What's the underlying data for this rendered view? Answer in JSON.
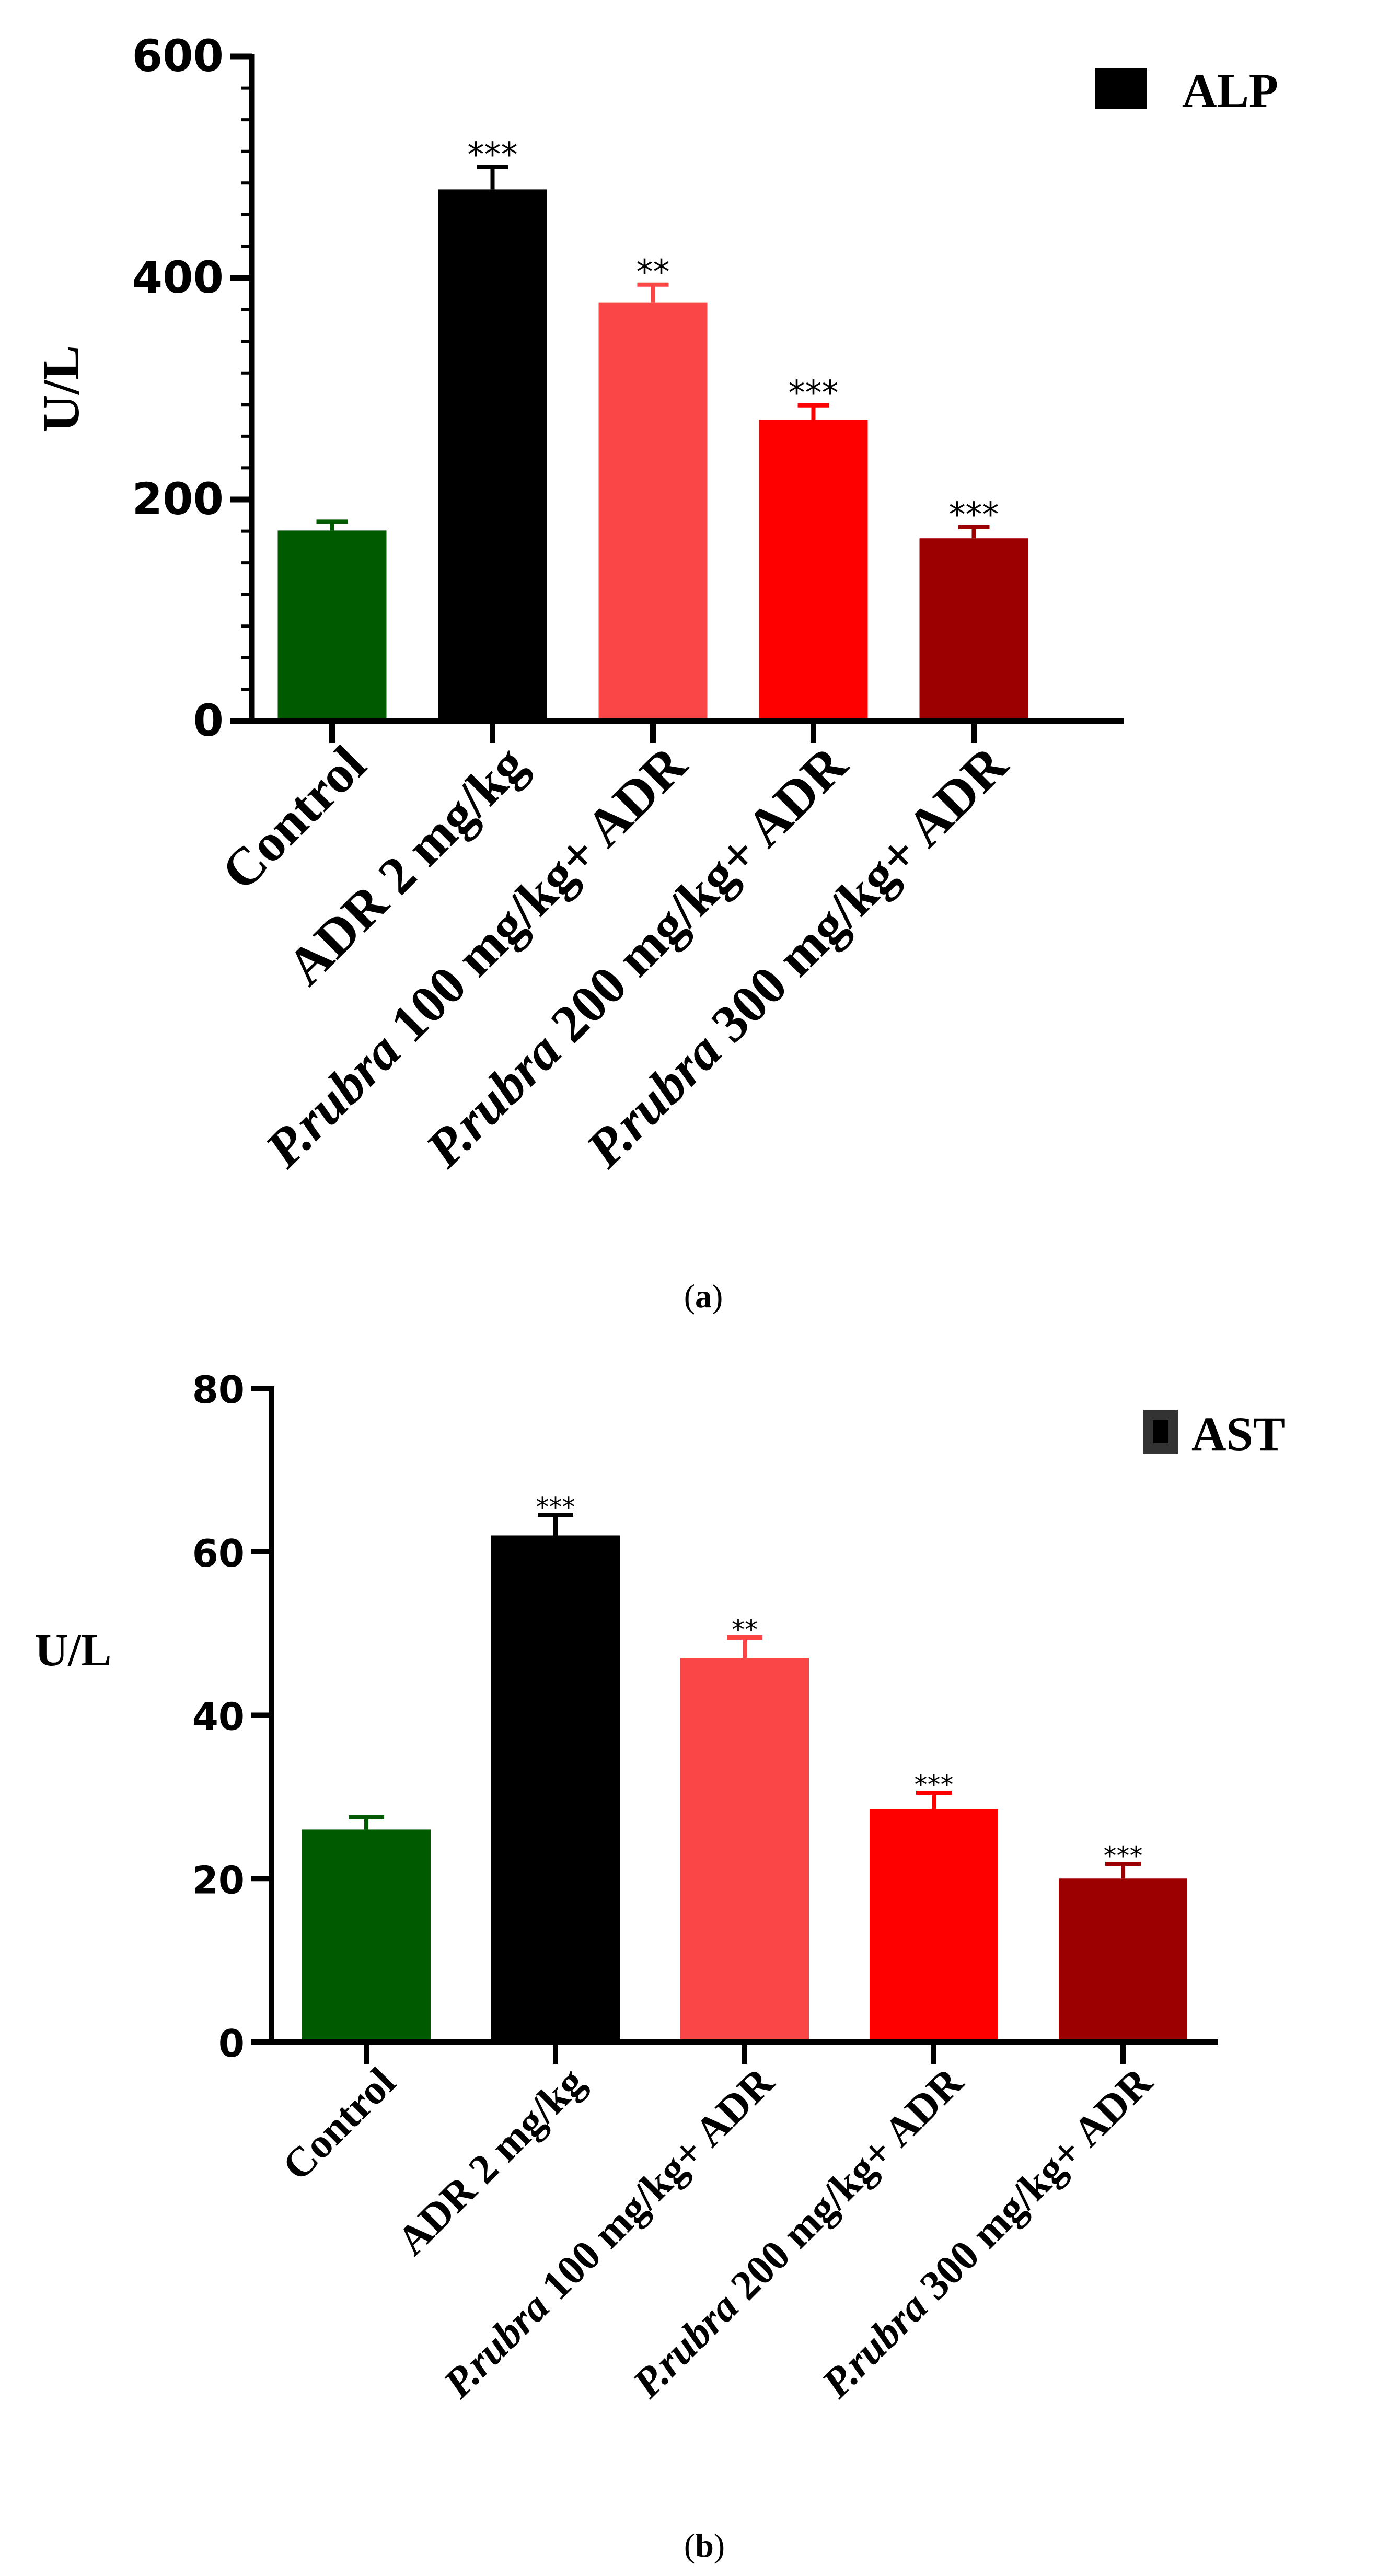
{
  "chart_data": [
    {
      "type": "bar",
      "categories": [
        {
          "italic": "",
          "rest": "Control"
        },
        {
          "italic": "",
          "rest": "ADR 2 mg/kg"
        },
        {
          "italic": "P.rubra",
          "rest": " 100 mg/kg+ ADR"
        },
        {
          "italic": "P.rubra",
          "rest": " 200 mg/kg+ ADR"
        },
        {
          "italic": "P.rubra",
          "rest": " 300 mg/kg+ ADR"
        }
      ],
      "values": [
        172,
        480,
        378,
        272,
        165
      ],
      "errors": [
        8,
        20,
        16,
        13,
        10
      ],
      "significance": [
        "",
        "***",
        "**",
        "***",
        "***"
      ],
      "colors": [
        "#005a00",
        "#000000",
        "#fa4646",
        "#fe0000",
        "#9c0000"
      ],
      "ylabel": "U/L",
      "ylim": [
        0,
        600
      ],
      "yticks": [
        "0",
        "200",
        "400",
        "600"
      ],
      "legend": {
        "label": "ALP",
        "position": "top-right"
      },
      "caption": {
        "open": "(",
        "letter": "a",
        "close": ")"
      }
    },
    {
      "type": "bar",
      "categories": [
        {
          "italic": "",
          "rest": "Control"
        },
        {
          "italic": "",
          "rest": "ADR 2 mg/kg"
        },
        {
          "italic": "P.rubra",
          "rest": " 100 mg/kg+ ADR"
        },
        {
          "italic": "P.rubra",
          "rest": " 200 mg/kg+ ADR"
        },
        {
          "italic": "P.rubra",
          "rest": " 300 mg/kg+ ADR"
        }
      ],
      "values": [
        26,
        62,
        47,
        28.5,
        20
      ],
      "errors": [
        1.5,
        2.5,
        2.5,
        2.0,
        1.8
      ],
      "significance": [
        "",
        "***",
        "**",
        "***",
        "***"
      ],
      "colors": [
        "#005a00",
        "#000000",
        "#fa4646",
        "#fe0000",
        "#9c0000"
      ],
      "ylabel": "U/L",
      "ylim": [
        0,
        80
      ],
      "yticks": [
        "0",
        "20",
        "40",
        "60",
        "80"
      ],
      "legend": {
        "label": "AST",
        "position": "top-right"
      },
      "caption": {
        "open": "(",
        "letter": "b",
        "close": ")"
      }
    }
  ]
}
